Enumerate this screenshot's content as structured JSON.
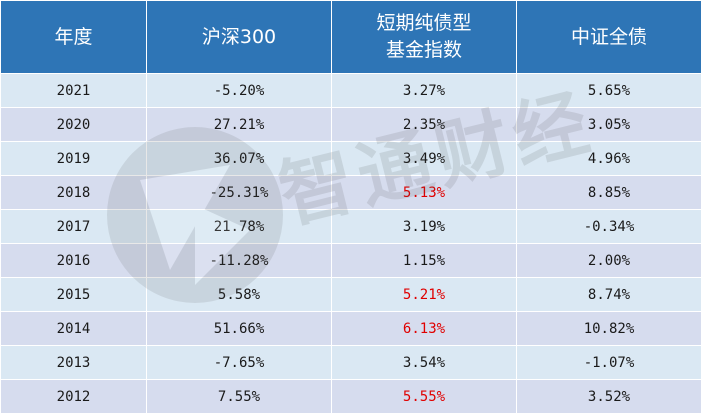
{
  "headers": [
    "年度",
    "沪深300",
    "短期纯债型\n基金指数",
    "中证全债"
  ],
  "rows": [
    {
      "year": "2021",
      "hs300": "-5.20%",
      "short_bond": "3.27%",
      "all_bond": "5.65%",
      "highlight": false
    },
    {
      "year": "2020",
      "hs300": "27.21%",
      "short_bond": "2.35%",
      "all_bond": "3.05%",
      "highlight": false
    },
    {
      "year": "2019",
      "hs300": "36.07%",
      "short_bond": "3.49%",
      "all_bond": "4.96%",
      "highlight": false
    },
    {
      "year": "2018",
      "hs300": "-25.31%",
      "short_bond": "5.13%",
      "all_bond": "8.85%",
      "highlight": true
    },
    {
      "year": "2017",
      "hs300": "21.78%",
      "short_bond": "3.19%",
      "all_bond": "-0.34%",
      "highlight": false
    },
    {
      "year": "2016",
      "hs300": "-11.28%",
      "short_bond": "1.15%",
      "all_bond": "2.00%",
      "highlight": false
    },
    {
      "year": "2015",
      "hs300": "5.58%",
      "short_bond": "5.21%",
      "all_bond": "8.74%",
      "highlight": true
    },
    {
      "year": "2014",
      "hs300": "51.66%",
      "short_bond": "6.13%",
      "all_bond": "10.82%",
      "highlight": true
    },
    {
      "year": "2013",
      "hs300": "-7.65%",
      "short_bond": "3.54%",
      "all_bond": "-1.07%",
      "highlight": false
    },
    {
      "year": "2012",
      "hs300": "7.55%",
      "short_bond": "5.55%",
      "all_bond": "3.52%",
      "highlight": true
    }
  ],
  "watermark": {
    "text": "智通财经",
    "logo_icon": "zhitong-logo-icon"
  },
  "colors": {
    "header_bg": "#2e75b6",
    "row_odd": "#dae8f3",
    "row_even": "#d6dcee",
    "highlight_text": "#e00000"
  }
}
